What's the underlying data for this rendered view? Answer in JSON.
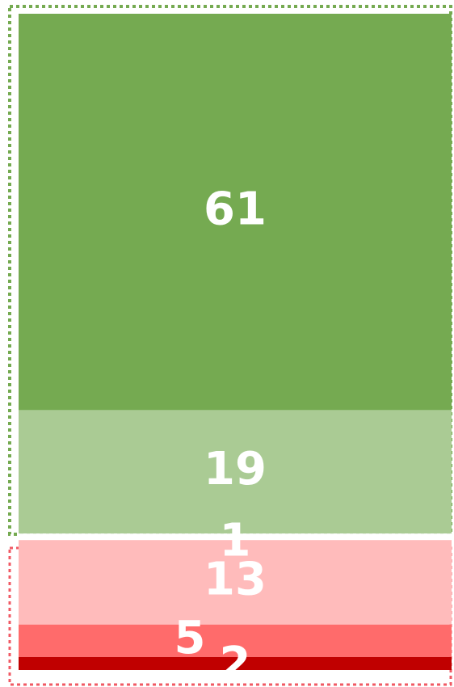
{
  "chart_data": {
    "type": "stacked_bar",
    "values": [
      61,
      19,
      1,
      13,
      5,
      2
    ],
    "colors": [
      "#75aa51",
      "#aacb94",
      "#ffffff",
      "#ffbbbb",
      "#ff6b6b",
      "#c00000"
    ]
  }
}
